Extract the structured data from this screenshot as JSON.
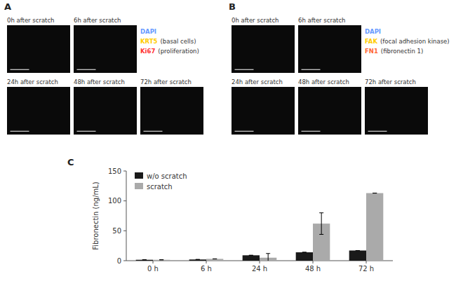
{
  "chart_data": {
    "type": "bar",
    "categories": [
      "0 h",
      "6 h",
      "24 h",
      "48 h",
      "72 h"
    ],
    "series": [
      {
        "name": "w/o scratch",
        "color": "#1a1a1a",
        "values": [
          1.5,
          2,
          9,
          14,
          17
        ],
        "errors": [
          0,
          0,
          0,
          0,
          0
        ]
      },
      {
        "name": "scratch",
        "color": "#aaaaaa",
        "values": [
          1.5,
          3,
          5,
          62,
          113
        ],
        "errors": [
          0,
          0,
          7,
          18,
          0
        ]
      }
    ],
    "y_label": "Fibronectin (ng/mL)",
    "ylim": [
      0,
      150
    ],
    "yticks": [
      0,
      50,
      100,
      150
    ],
    "legend": "upper left",
    "annotations": [
      {
        "text": "A"
      },
      {
        "text": "0h after scratch"
      },
      {
        "text": "6h after scratch"
      },
      {
        "text": "24h after scratch"
      },
      {
        "text": "48h after scratch"
      },
      {
        "text": "72h after scratch"
      },
      {
        "text": "DAPI",
        "color": "#6699ff"
      },
      {
        "text": "KRT5",
        "color": "#ffcc00"
      },
      {
        "text": "(basal cells)"
      },
      {
        "text": "Ki67",
        "color": "#ff3333"
      },
      {
        "text": "(proliferation)"
      },
      {
        "text": "B"
      },
      {
        "text": "0h after scratch"
      },
      {
        "text": "6h after scratch"
      },
      {
        "text": "24h after scratch"
      },
      {
        "text": "48h after scratch"
      },
      {
        "text": "72h after scratch"
      },
      {
        "text": "DAPI",
        "color": "#6699ff"
      },
      {
        "text": "FAK",
        "color": "#ffcc00"
      },
      {
        "text": "(focal adhesion kinase)"
      },
      {
        "text": "FN1",
        "color": "#ff6633"
      },
      {
        "text": "(fibronectin 1)"
      },
      {
        "text": "C"
      }
    ]
  }
}
